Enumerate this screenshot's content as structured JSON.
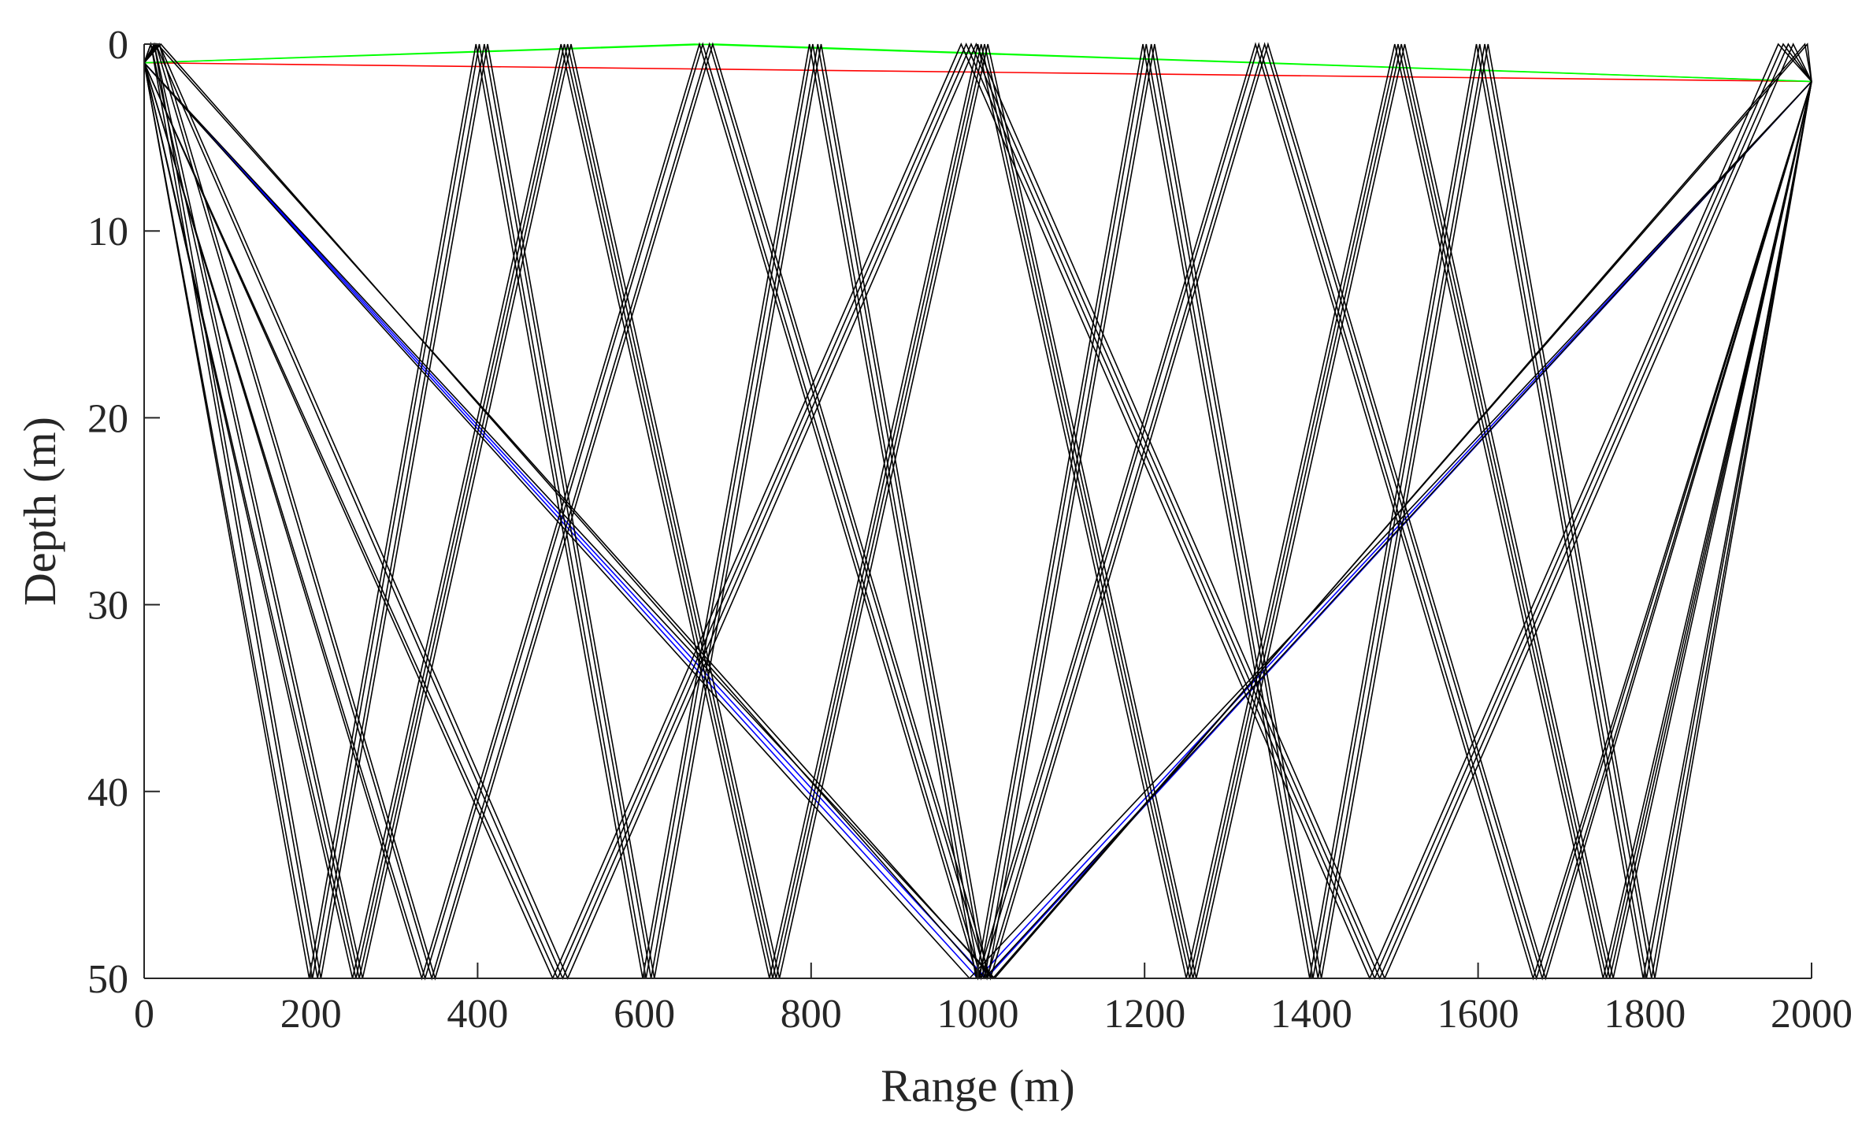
{
  "chart_data": {
    "type": "line",
    "title": "",
    "xlabel": "Range (m)",
    "ylabel": "Depth (m)",
    "xlim": [
      0,
      2000
    ],
    "ylim": [
      0,
      50
    ],
    "y_reversed": true,
    "grid": false,
    "legend": "none",
    "x_ticks": [
      "0",
      "200",
      "400",
      "600",
      "800",
      "1000",
      "1200",
      "1400",
      "1600",
      "1800",
      "2000"
    ],
    "y_ticks": [
      "0",
      "10",
      "20",
      "30",
      "40",
      "50"
    ],
    "colors": {
      "axis": "#262626",
      "eigenray_black": "#000000",
      "direct_path_red": "#ff0000",
      "surface_path_green": "#00ff00",
      "bottom_path_blue": "#0000ff"
    },
    "series": [
      {
        "color": "#ff0000",
        "x": [
          0,
          2000
        ],
        "y": [
          1,
          2
        ]
      },
      {
        "color": "#00ff00",
        "x": [
          0,
          660,
          2000
        ],
        "y": [
          1,
          0,
          2
        ]
      },
      {
        "color": "#00ff00",
        "x": [
          0,
          685,
          2000
        ],
        "y": [
          1,
          0,
          2
        ]
      },
      {
        "color": "#0000ff",
        "x": [
          0,
          1000,
          2000
        ],
        "y": [
          1,
          50,
          2
        ]
      },
      {
        "color": "#0000ff",
        "x": [
          0,
          1010,
          2000
        ],
        "y": [
          1,
          50,
          2
        ]
      },
      {
        "color": "#000000",
        "x": [
          0,
          198,
          398,
          598,
          798,
          998,
          1198,
          1398,
          1598,
          1798,
          2000
        ],
        "y": [
          1,
          50,
          0,
          50,
          0,
          50,
          0,
          50,
          0,
          50,
          2
        ]
      },
      {
        "color": "#000000",
        "x": [
          0,
          202,
          402,
          602,
          802,
          1002,
          1202,
          1402,
          1602,
          1802,
          2000
        ],
        "y": [
          1,
          50,
          0,
          50,
          0,
          50,
          0,
          50,
          0,
          50,
          2
        ]
      },
      {
        "color": "#000000",
        "x": [
          0,
          8,
          208,
          408,
          608,
          808,
          1008,
          1208,
          1408,
          1608,
          1808,
          2000
        ],
        "y": [
          1,
          0,
          50,
          0,
          50,
          0,
          50,
          0,
          50,
          0,
          50,
          2
        ]
      },
      {
        "color": "#000000",
        "x": [
          0,
          12,
          212,
          412,
          612,
          812,
          1012,
          1212,
          1412,
          1612,
          1812,
          2000
        ],
        "y": [
          1,
          0,
          50,
          0,
          50,
          0,
          50,
          0,
          50,
          0,
          50,
          2
        ]
      },
      {
        "color": "#000000",
        "x": [
          0,
          250,
          500,
          750,
          1000,
          1250,
          1500,
          1750,
          2000
        ],
        "y": [
          1,
          50,
          0,
          50,
          0,
          50,
          0,
          50,
          2
        ]
      },
      {
        "color": "#000000",
        "x": [
          0,
          254,
          504,
          754,
          1004,
          1254,
          1504,
          1754,
          2000
        ],
        "y": [
          1,
          50,
          0,
          50,
          0,
          50,
          0,
          50,
          2
        ]
      },
      {
        "color": "#000000",
        "x": [
          0,
          8,
          258,
          508,
          758,
          1008,
          1258,
          1508,
          1758,
          2000
        ],
        "y": [
          1,
          0,
          50,
          0,
          50,
          0,
          50,
          0,
          50,
          2
        ]
      },
      {
        "color": "#000000",
        "x": [
          0,
          12,
          262,
          512,
          762,
          1012,
          1262,
          1512,
          1762,
          2000
        ],
        "y": [
          1,
          0,
          50,
          0,
          50,
          0,
          50,
          0,
          50,
          2
        ]
      },
      {
        "color": "#000000",
        "x": [
          0,
          333,
          666,
          1000,
          1333,
          1666,
          2000
        ],
        "y": [
          1,
          50,
          0,
          50,
          0,
          50,
          2
        ]
      },
      {
        "color": "#000000",
        "x": [
          0,
          337,
          670,
          1004,
          1337,
          1670,
          2000
        ],
        "y": [
          1,
          50,
          0,
          50,
          0,
          50,
          2
        ]
      },
      {
        "color": "#000000",
        "x": [
          0,
          14,
          345,
          678,
          1011,
          1344,
          1677,
          2000
        ],
        "y": [
          1,
          0,
          50,
          0,
          50,
          0,
          50,
          2
        ]
      },
      {
        "color": "#000000",
        "x": [
          0,
          18,
          349,
          682,
          1015,
          1348,
          1681,
          2000
        ],
        "y": [
          1,
          0,
          50,
          0,
          50,
          0,
          50,
          2
        ]
      },
      {
        "color": "#000000",
        "x": [
          0,
          490,
          980,
          1470,
          1960,
          2000
        ],
        "y": [
          1,
          50,
          0,
          50,
          0,
          2
        ]
      },
      {
        "color": "#000000",
        "x": [
          0,
          496,
          986,
          1476,
          1966,
          2000
        ],
        "y": [
          1,
          50,
          0,
          50,
          0,
          2
        ]
      },
      {
        "color": "#000000",
        "x": [
          0,
          14,
          502,
          992,
          1482,
          1972,
          2000
        ],
        "y": [
          1,
          0,
          50,
          0,
          50,
          0,
          2
        ]
      },
      {
        "color": "#000000",
        "x": [
          0,
          18,
          508,
          998,
          1488,
          1978,
          2000
        ],
        "y": [
          1,
          0,
          50,
          0,
          50,
          0,
          2
        ]
      },
      {
        "color": "#000000",
        "x": [
          0,
          990,
          2000
        ],
        "y": [
          1,
          50,
          2
        ]
      },
      {
        "color": "#000000",
        "x": [
          0,
          20,
          1008,
          2000
        ],
        "y": [
          1,
          0,
          50,
          2
        ]
      },
      {
        "color": "#000000",
        "x": [
          0,
          1020,
          1992,
          2000
        ],
        "y": [
          1,
          50,
          0,
          2
        ]
      },
      {
        "color": "#000000",
        "x": [
          0,
          16,
          1018,
          1995,
          2000
        ],
        "y": [
          1,
          0,
          50,
          0,
          2
        ]
      }
    ]
  }
}
